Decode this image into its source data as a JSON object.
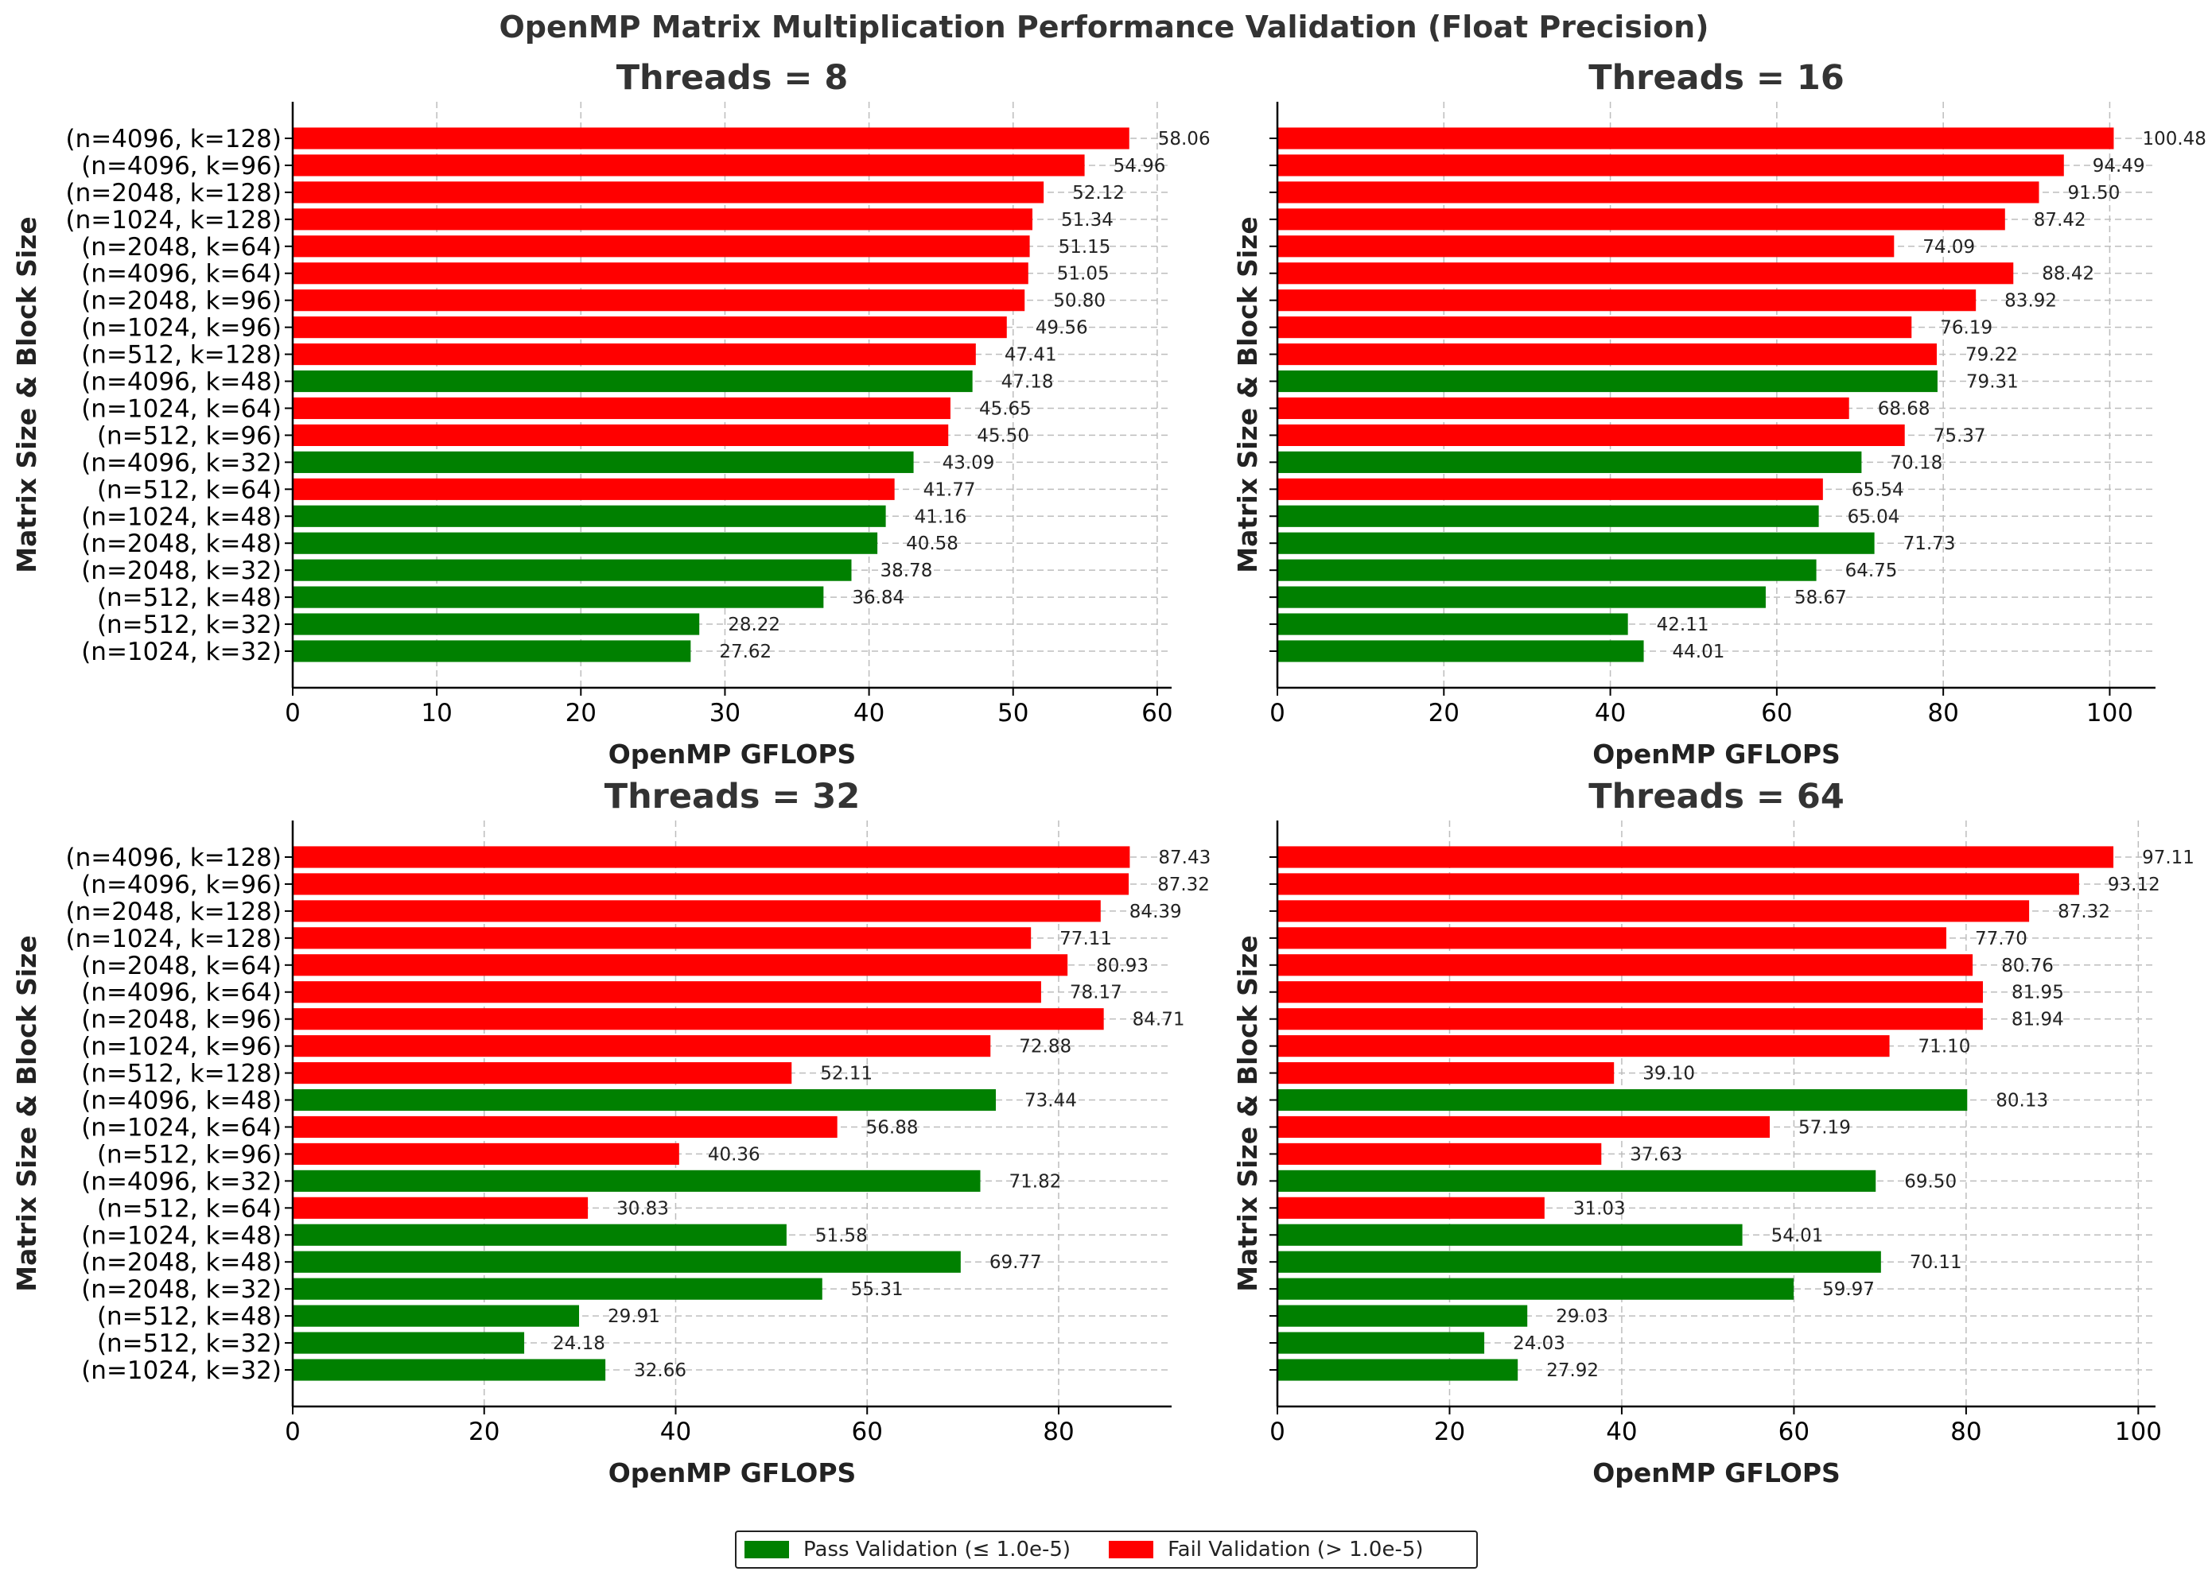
{
  "figure": {
    "title": "OpenMP Matrix Multiplication Performance Validation (Float Precision)"
  },
  "legend": {
    "pass_label": "Pass Validation (≤ 1.0e-5)",
    "fail_label": "Fail Validation (> 1.0e-5)",
    "pass_color": "#008000",
    "fail_color": "#ff0000",
    "placement": "bottom-center"
  },
  "chart_data": [
    {
      "type": "bar",
      "orientation": "horizontal",
      "title": "Threads = 8",
      "xlabel": "OpenMP GFLOPS",
      "ylabel": "Matrix Size & Block Size",
      "xlim": [
        0,
        61
      ],
      "xticks": [
        0,
        10,
        20,
        30,
        40,
        50,
        60
      ],
      "grid": true,
      "categories": [
        "(n=4096, k=128)",
        "(n=4096, k=96)",
        "(n=2048, k=128)",
        "(n=1024, k=128)",
        "(n=2048, k=64)",
        "(n=4096, k=64)",
        "(n=2048, k=96)",
        "(n=1024, k=96)",
        "(n=512, k=128)",
        "(n=4096, k=48)",
        "(n=1024, k=64)",
        "(n=512, k=96)",
        "(n=4096, k=32)",
        "(n=512, k=64)",
        "(n=1024, k=48)",
        "(n=2048, k=48)",
        "(n=2048, k=32)",
        "(n=512, k=48)",
        "(n=512, k=32)",
        "(n=1024, k=32)"
      ],
      "values": [
        58.06,
        54.96,
        52.12,
        51.34,
        51.15,
        51.05,
        50.8,
        49.56,
        47.41,
        47.18,
        45.65,
        45.5,
        43.09,
        41.77,
        41.16,
        40.58,
        38.78,
        36.84,
        28.22,
        27.62
      ],
      "labels": [
        "58.06",
        "54.96",
        "52.12",
        "51.34",
        "51.15",
        "51.05",
        "50.80",
        "49.56",
        "47.41",
        "47.18",
        "45.65",
        "45.50",
        "43.09",
        "41.77",
        "41.16",
        "40.58",
        "38.78",
        "36.84",
        "28.22",
        "27.62"
      ],
      "pass": [
        false,
        false,
        false,
        false,
        false,
        false,
        false,
        false,
        false,
        true,
        false,
        false,
        true,
        false,
        true,
        true,
        true,
        true,
        true,
        true
      ]
    },
    {
      "type": "bar",
      "orientation": "horizontal",
      "title": "Threads = 16",
      "xlabel": "OpenMP GFLOPS",
      "ylabel": "Matrix Size & Block Size",
      "xlim": [
        0,
        105.5
      ],
      "xticks": [
        0,
        20,
        40,
        60,
        80,
        100
      ],
      "grid": true,
      "categories": [
        "(n=4096, k=128)",
        "(n=4096, k=96)",
        "(n=2048, k=128)",
        "(n=1024, k=128)",
        "(n=2048, k=64)",
        "(n=4096, k=64)",
        "(n=2048, k=96)",
        "(n=1024, k=96)",
        "(n=512, k=128)",
        "(n=4096, k=48)",
        "(n=1024, k=64)",
        "(n=512, k=96)",
        "(n=4096, k=32)",
        "(n=512, k=64)",
        "(n=1024, k=48)",
        "(n=2048, k=48)",
        "(n=2048, k=32)",
        "(n=512, k=48)",
        "(n=512, k=32)",
        "(n=1024, k=32)"
      ],
      "values": [
        100.48,
        94.49,
        91.5,
        87.42,
        74.09,
        88.42,
        83.92,
        76.19,
        79.22,
        79.31,
        68.68,
        75.37,
        70.18,
        65.54,
        65.04,
        71.73,
        64.75,
        58.67,
        42.11,
        44.01
      ],
      "labels": [
        "100.48",
        "94.49",
        "91.50",
        "87.42",
        "74.09",
        "88.42",
        "83.92",
        "76.19",
        "79.22",
        "79.31",
        "68.68",
        "75.37",
        "70.18",
        "65.54",
        "65.04",
        "71.73",
        "64.75",
        "58.67",
        "42.11",
        "44.01"
      ],
      "pass": [
        false,
        false,
        false,
        false,
        false,
        false,
        false,
        false,
        false,
        true,
        false,
        false,
        true,
        false,
        true,
        true,
        true,
        true,
        true,
        true
      ]
    },
    {
      "type": "bar",
      "orientation": "horizontal",
      "title": "Threads = 32",
      "xlabel": "OpenMP GFLOPS",
      "ylabel": "Matrix Size & Block Size",
      "xlim": [
        0,
        91.8
      ],
      "xticks": [
        0,
        20,
        40,
        60,
        80
      ],
      "grid": true,
      "categories": [
        "(n=4096, k=128)",
        "(n=4096, k=96)",
        "(n=2048, k=128)",
        "(n=1024, k=128)",
        "(n=2048, k=64)",
        "(n=4096, k=64)",
        "(n=2048, k=96)",
        "(n=1024, k=96)",
        "(n=512, k=128)",
        "(n=4096, k=48)",
        "(n=1024, k=64)",
        "(n=512, k=96)",
        "(n=4096, k=32)",
        "(n=512, k=64)",
        "(n=1024, k=48)",
        "(n=2048, k=48)",
        "(n=2048, k=32)",
        "(n=512, k=48)",
        "(n=512, k=32)",
        "(n=1024, k=32)"
      ],
      "values": [
        87.43,
        87.32,
        84.39,
        77.11,
        80.93,
        78.17,
        84.71,
        72.88,
        52.11,
        73.44,
        56.88,
        40.36,
        71.82,
        30.83,
        51.58,
        69.77,
        55.31,
        29.91,
        24.18,
        32.66
      ],
      "labels": [
        "87.43",
        "87.32",
        "84.39",
        "77.11",
        "80.93",
        "78.17",
        "84.71",
        "72.88",
        "52.11",
        "73.44",
        "56.88",
        "40.36",
        "71.82",
        "30.83",
        "51.58",
        "69.77",
        "55.31",
        "29.91",
        "24.18",
        "32.66"
      ],
      "pass": [
        false,
        false,
        false,
        false,
        false,
        false,
        false,
        false,
        false,
        true,
        false,
        false,
        true,
        false,
        true,
        true,
        true,
        true,
        true,
        true
      ]
    },
    {
      "type": "bar",
      "orientation": "horizontal",
      "title": "Threads = 64",
      "xlabel": "OpenMP GFLOPS",
      "ylabel": "Matrix Size & Block Size",
      "xlim": [
        0,
        102
      ],
      "xticks": [
        0,
        20,
        40,
        60,
        80,
        100
      ],
      "grid": true,
      "categories": [
        "(n=4096, k=128)",
        "(n=4096, k=96)",
        "(n=2048, k=128)",
        "(n=1024, k=128)",
        "(n=2048, k=64)",
        "(n=4096, k=64)",
        "(n=2048, k=96)",
        "(n=1024, k=96)",
        "(n=512, k=128)",
        "(n=4096, k=48)",
        "(n=1024, k=64)",
        "(n=512, k=96)",
        "(n=4096, k=32)",
        "(n=512, k=64)",
        "(n=1024, k=48)",
        "(n=2048, k=48)",
        "(n=2048, k=32)",
        "(n=512, k=48)",
        "(n=512, k=32)",
        "(n=1024, k=32)"
      ],
      "values": [
        97.11,
        93.12,
        87.32,
        77.7,
        80.76,
        81.95,
        81.94,
        71.1,
        39.1,
        80.13,
        57.19,
        37.63,
        69.5,
        31.03,
        54.01,
        70.11,
        59.97,
        29.03,
        24.03,
        27.92
      ],
      "labels": [
        "97.11",
        "93.12",
        "87.32",
        "77.70",
        "80.76",
        "81.95",
        "81.94",
        "71.10",
        "39.10",
        "80.13",
        "57.19",
        "37.63",
        "69.50",
        "31.03",
        "54.01",
        "70.11",
        "59.97",
        "29.03",
        "24.03",
        "27.92"
      ],
      "pass": [
        false,
        false,
        false,
        false,
        false,
        false,
        false,
        false,
        false,
        true,
        false,
        false,
        true,
        false,
        true,
        true,
        true,
        true,
        true,
        true
      ]
    }
  ]
}
